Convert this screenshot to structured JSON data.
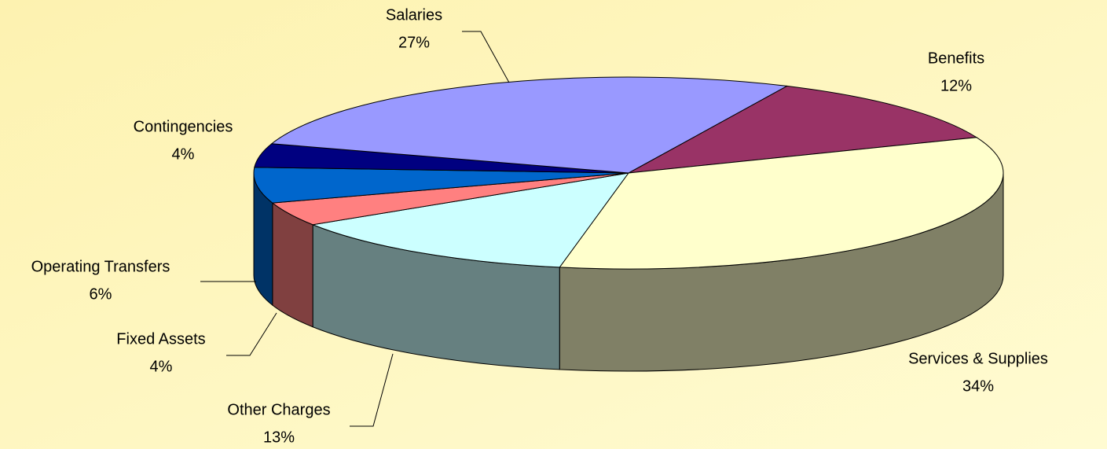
{
  "chart_data": {
    "type": "pie3d",
    "categories": [
      "Benefits",
      "Services & Supplies",
      "Other Charges",
      "Fixed Assets",
      "Operating Transfers",
      "Contingencies",
      "Salaries"
    ],
    "values": [
      12,
      34,
      13,
      4,
      6,
      4,
      27
    ],
    "value_labels": [
      "12%",
      "34%",
      "13%",
      "4%",
      "6%",
      "4%",
      "27%"
    ],
    "colors": [
      "#993366",
      "#ffffcc",
      "#ccffff",
      "#ff8080",
      "#0066cc",
      "#000080",
      "#9999ff"
    ]
  }
}
